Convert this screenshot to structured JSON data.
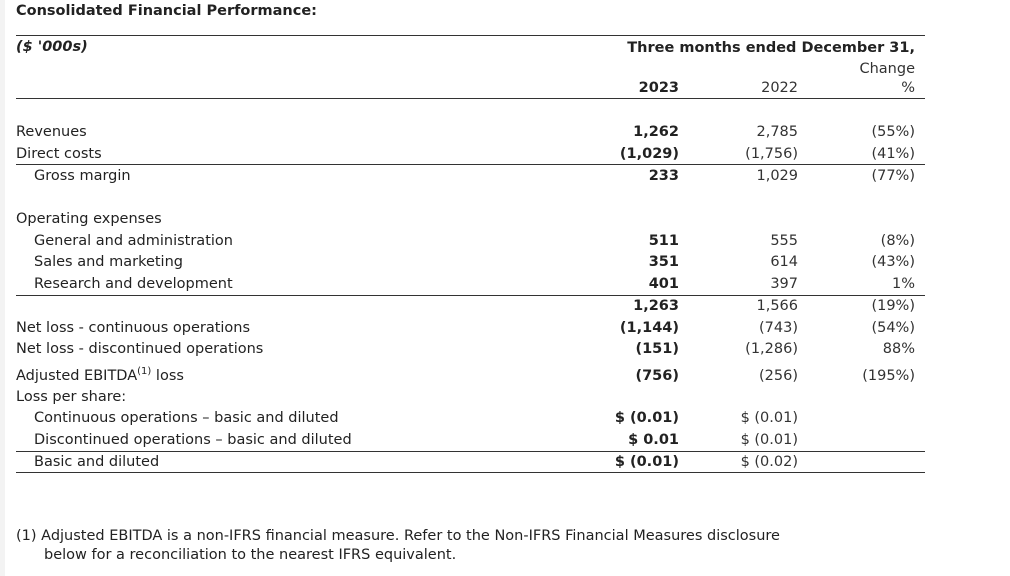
{
  "title": "Consolidated Financial Performance:",
  "header": {
    "units": "($ '000s)",
    "period": "Three months ended December 31,",
    "col_2023": "2023",
    "col_2022": "2022",
    "change_line1": "Change",
    "change_line2": "%"
  },
  "rows": [
    {
      "label": "Revenues",
      "v2023": "1,262",
      "v2022": "2,785",
      "change": "(55%)"
    },
    {
      "label": "Direct costs",
      "v2023": "(1,029)",
      "v2022": "(1,756)",
      "change": "(41%)"
    },
    {
      "label": "Gross margin",
      "v2023": "233",
      "v2022": "1,029",
      "change": "(77%)"
    },
    {
      "label": "Operating expenses"
    },
    {
      "label": "General and administration",
      "v2023": "511",
      "v2022": "555",
      "change": "(8%)"
    },
    {
      "label": "Sales and marketing",
      "v2023": "351",
      "v2022": "614",
      "change": "(43%)"
    },
    {
      "label": "Research and development",
      "v2023": "401",
      "v2022": "397",
      "change": "1%"
    },
    {
      "label": "",
      "v2023": "1,263",
      "v2022": "1,566",
      "change": "(19%)"
    },
    {
      "label": "Net loss - continuous operations",
      "v2023": "(1,144)",
      "v2022": "(743)",
      "change": "(54%)"
    },
    {
      "label": "Net loss - discontinued operations",
      "v2023": "(151)",
      "v2022": "(1,286)",
      "change": "88%"
    },
    {
      "label": "Adjusted EBITDA",
      "sup": "(1)",
      "label_suffix": " loss",
      "v2023": "(756)",
      "v2022": "(256)",
      "change": "(195%)"
    },
    {
      "label": "Loss per share:"
    },
    {
      "label": "Continuous operations – basic and diluted",
      "v2023": "$ (0.01)",
      "v2022": "$ (0.01)"
    },
    {
      "label": "Discontinued operations – basic and diluted",
      "v2023": "$ 0.01",
      "v2022": "$ (0.01)"
    },
    {
      "label": "Basic and diluted",
      "v2023": "$ (0.01)",
      "v2022": "$ (0.02)"
    }
  ],
  "footnote": {
    "line1": "(1) Adjusted EBITDA is a non-IFRS financial measure. Refer to the Non-IFRS Financial Measures disclosure",
    "line2": "below for a reconciliation to the nearest IFRS equivalent."
  }
}
